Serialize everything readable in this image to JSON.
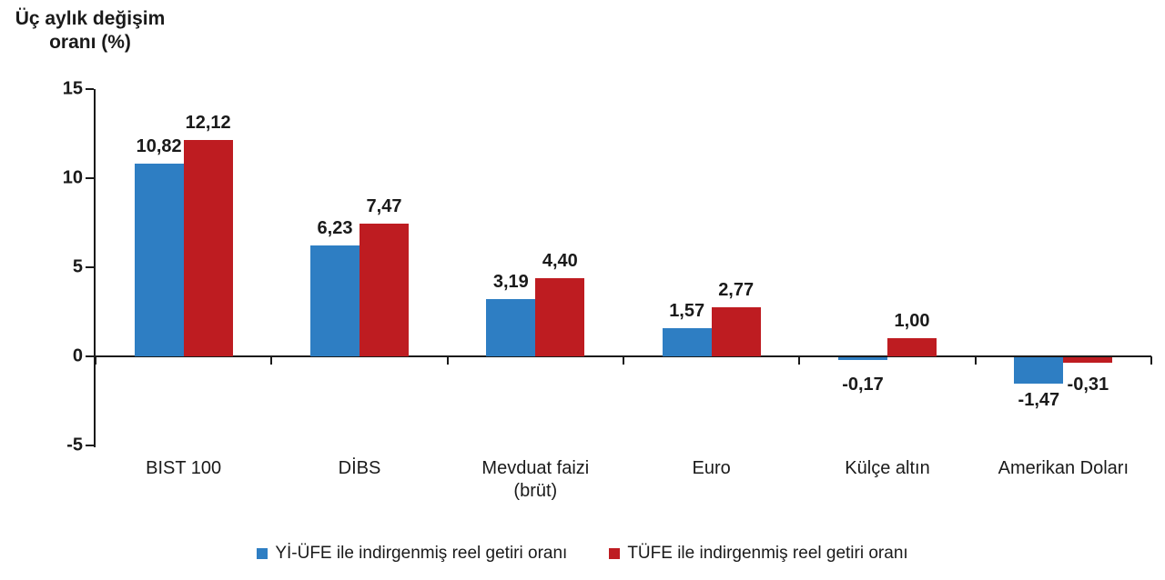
{
  "chart_data": {
    "type": "bar",
    "title": "Üç aylık değişim oranı (%)",
    "categories": [
      "BIST 100",
      "DİBS",
      "Mevduat faizi (brüt)",
      "Euro",
      "Külçe altın",
      "Amerikan Doları"
    ],
    "category_display": [
      "BIST 100",
      "DİBS",
      "Mevduat faizi\n(brüt)",
      "Euro",
      "Külçe altın",
      "Amerikan Doları"
    ],
    "series": [
      {
        "name": "Yİ-ÜFE ile indirgenmiş reel getiri oranı",
        "color": "#2E7EC3",
        "values": [
          10.82,
          6.23,
          3.19,
          1.57,
          -0.17,
          -1.47
        ],
        "labels": [
          "10,82",
          "6,23",
          "3,19",
          "1,57",
          "-0,17",
          "-1,47"
        ]
      },
      {
        "name": "TÜFE ile indirgenmiş reel getiri oranı",
        "color": "#BE1C21",
        "values": [
          12.12,
          7.47,
          4.4,
          2.77,
          1.0,
          -0.31
        ],
        "labels": [
          "12,12",
          "7,47",
          "4,40",
          "2,77",
          "1,00",
          "-0,31"
        ]
      }
    ],
    "ylim": [
      -5,
      15
    ],
    "yticks": [
      15,
      10,
      5,
      0,
      -5
    ],
    "grid": false,
    "legend_position": "bottom",
    "axis_color": "#1a1a1a"
  }
}
